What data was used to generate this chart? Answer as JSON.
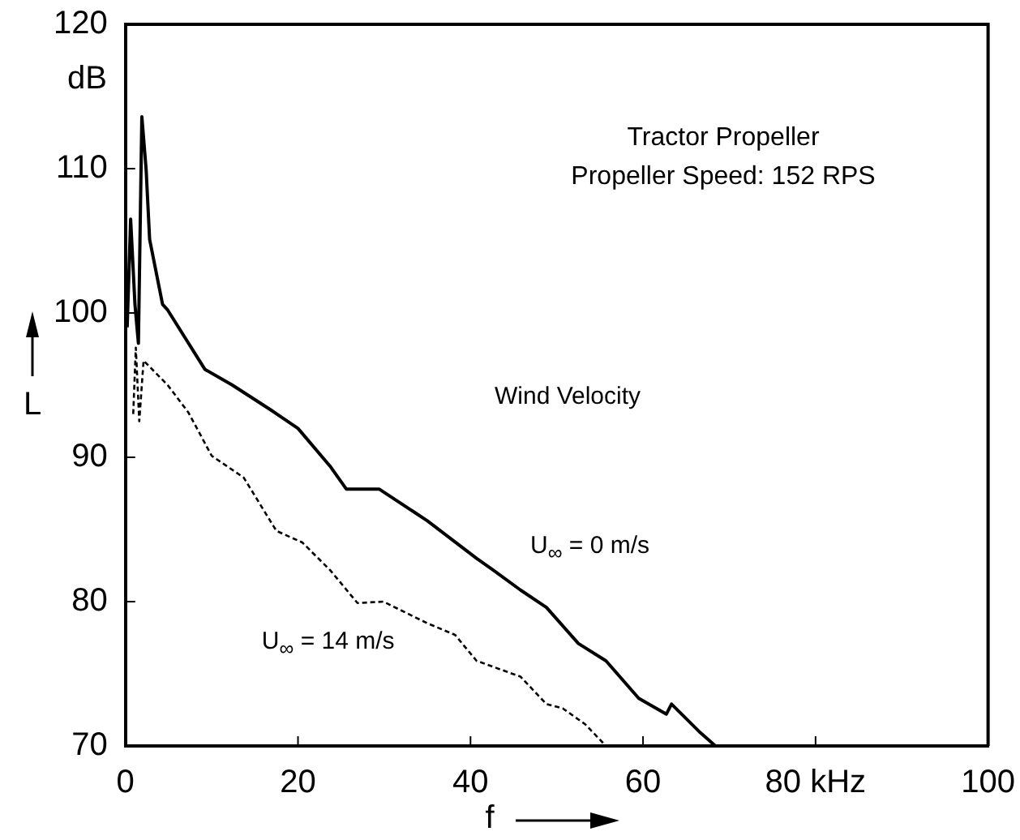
{
  "chart_data": {
    "type": "line",
    "xlabel": "f",
    "ylabel": "L",
    "annotations": [
      "dB",
      "Tractor Propeller",
      "Propeller Speed: 152 RPS",
      "Wind Velocity"
    ],
    "xlim": [
      0,
      100
    ],
    "xticks": [
      0,
      20,
      40,
      60,
      {
        "value": 80,
        "label": "80 kHz"
      },
      100
    ],
    "ylim": [
      70,
      120
    ],
    "yticks": [
      70,
      80,
      90,
      100,
      110,
      120
    ],
    "grid": false,
    "legend": false,
    "marker": "none",
    "series": [
      {
        "name": "U$_{∞}$ = 0 m/s",
        "color": "#000000",
        "line_style": "solid",
        "x": [
          0.2,
          0.6,
          1.1,
          1.5,
          1.9,
          2.4,
          2.8,
          4.3,
          4.9,
          9.2,
          12.4,
          16.8,
          20,
          23.7,
          25.6,
          29.4,
          35,
          40.7,
          42.6,
          45.8,
          48.8,
          52.5,
          55.7,
          59.5,
          62.7,
          63.3,
          66.5,
          68.4
        ],
        "values": [
          99.0,
          106.5,
          100.6,
          97.9,
          113.6,
          109.9,
          105.1,
          100.6,
          100.2,
          96.1,
          95.0,
          93.3,
          92.0,
          89.4,
          87.8,
          87.8,
          85.6,
          83.0,
          82.2,
          80.8,
          79.6,
          77.1,
          75.9,
          73.3,
          72.2,
          72.9,
          71.0,
          70.0
        ]
      },
      {
        "name": "U$_{∞}$ = 14 m/s",
        "color": "#000000",
        "line_style": "dashed",
        "x": [
          0.9,
          1.2,
          1.6,
          2.1,
          4.9,
          7.3,
          10,
          13.7,
          17.5,
          20.5,
          23.7,
          26.9,
          29.9,
          35,
          38.2,
          40.7,
          45.8,
          48.8,
          50.7,
          53.3,
          55.7
        ],
        "values": [
          93.0,
          97.6,
          92.5,
          96.7,
          95.0,
          93.1,
          90.1,
          88.6,
          84.9,
          84.1,
          82.2,
          79.9,
          80.0,
          78.5,
          77.7,
          75.9,
          74.8,
          72.9,
          72.6,
          71.5,
          70.0
        ]
      }
    ]
  }
}
